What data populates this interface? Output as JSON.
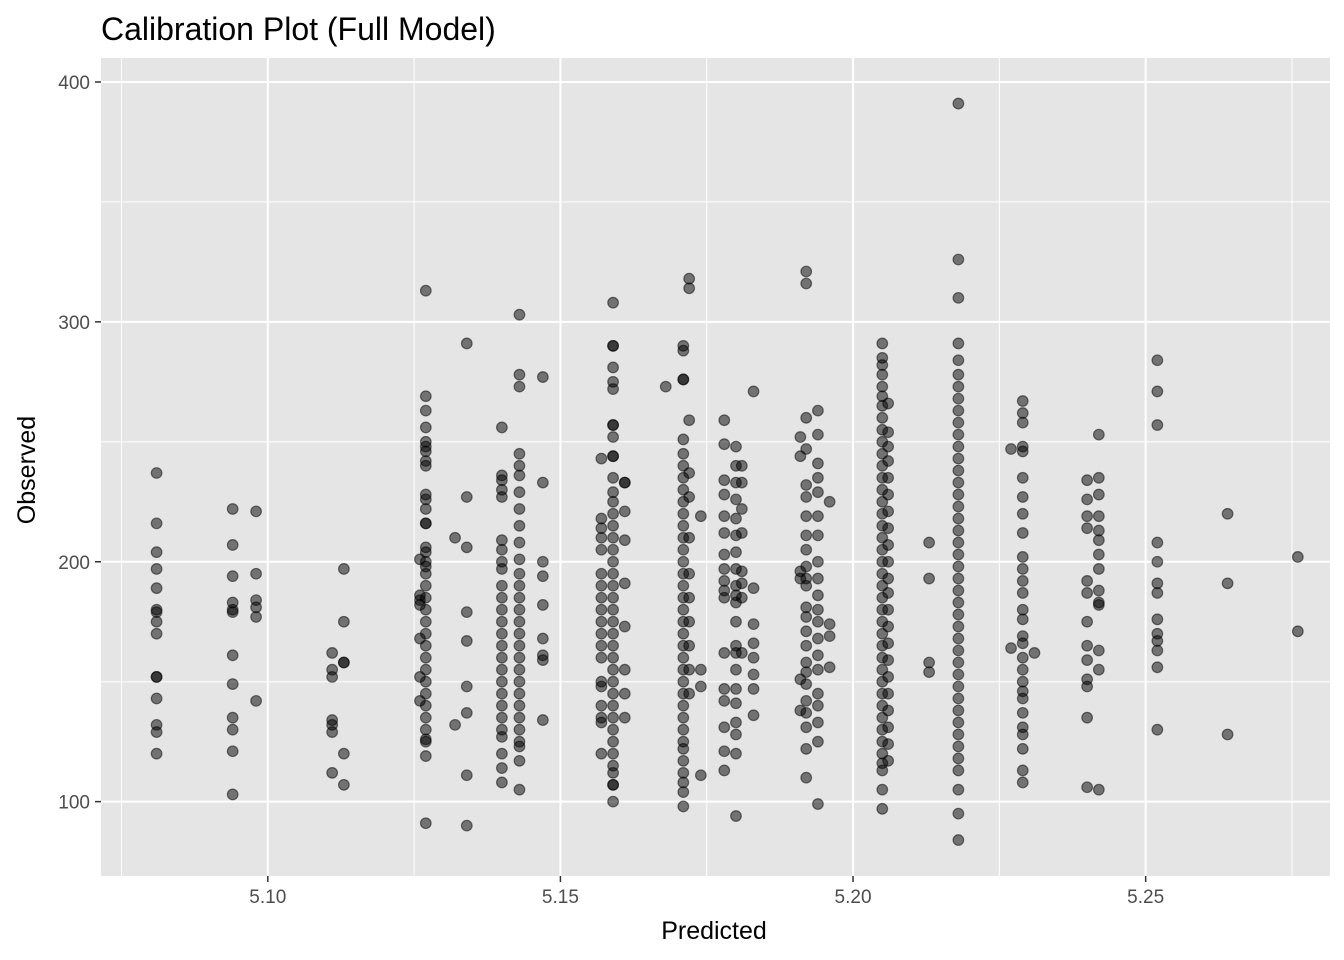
{
  "chart_data": {
    "type": "scatter",
    "title": "Calibration Plot (Full Model)",
    "xlabel": "Predicted",
    "ylabel": "Observed",
    "xlim": [
      5.0715,
      5.2815
    ],
    "ylim": [
      69,
      410
    ],
    "x_ticks": [
      5.1,
      5.15,
      5.2,
      5.25
    ],
    "x_tick_labels": [
      "5.10",
      "5.15",
      "5.20",
      "5.25"
    ],
    "y_ticks": [
      100,
      200,
      300,
      400
    ],
    "y_tick_labels": [
      "100",
      "200",
      "300",
      "400"
    ],
    "grid": true,
    "legend": "none",
    "point_color": "#000000",
    "point_opacity": 0.5,
    "panel_background": "#e5e5e5",
    "grid_color": "#ffffff",
    "columns": [
      {
        "x": 5.081,
        "y": [
          237,
          216,
          204,
          197,
          189,
          180,
          179,
          175,
          170,
          152,
          152,
          143,
          132,
          129,
          120
        ]
      },
      {
        "x": 5.094,
        "y": [
          222,
          207,
          194,
          183,
          180,
          179,
          161,
          149,
          135,
          130,
          121,
          103
        ]
      },
      {
        "x": 5.098,
        "y": [
          221,
          195,
          184,
          181,
          177,
          142
        ]
      },
      {
        "x": 5.111,
        "y": [
          162,
          155,
          152,
          134,
          132,
          129,
          112
        ]
      },
      {
        "x": 5.113,
        "y": [
          197,
          175,
          158,
          158,
          120,
          107
        ]
      },
      {
        "x": 5.126,
        "y": [
          201,
          186,
          184,
          182,
          168,
          152,
          142
        ]
      },
      {
        "x": 5.127,
        "y": [
          313,
          269,
          263,
          256,
          250,
          248,
          246,
          242,
          240,
          228,
          226,
          222,
          216,
          216,
          206,
          204,
          200,
          198,
          195,
          190,
          185,
          180,
          175,
          170,
          165,
          160,
          155,
          150,
          145,
          140,
          135,
          130,
          126,
          125,
          119,
          91
        ]
      },
      {
        "x": 5.132,
        "y": [
          210,
          132
        ]
      },
      {
        "x": 5.134,
        "y": [
          291,
          227,
          206,
          179,
          167,
          148,
          137,
          111,
          90
        ]
      },
      {
        "x": 5.14,
        "y": [
          256,
          236,
          234,
          230,
          227,
          209,
          205,
          200,
          197,
          190,
          185,
          180,
          175,
          170,
          165,
          160,
          155,
          150,
          145,
          140,
          135,
          130,
          127,
          120,
          114,
          108
        ]
      },
      {
        "x": 5.143,
        "y": [
          303,
          278,
          273,
          245,
          240,
          236,
          229,
          222,
          215,
          208,
          201,
          195,
          190,
          185,
          180,
          175,
          170,
          165,
          160,
          155,
          150,
          145,
          140,
          135,
          130,
          125,
          123,
          117,
          105
        ]
      },
      {
        "x": 5.147,
        "y": [
          277,
          233,
          200,
          194,
          182,
          168,
          161,
          159,
          134
        ]
      },
      {
        "x": 5.157,
        "y": [
          243,
          218,
          214,
          210,
          205,
          195,
          190,
          185,
          180,
          175,
          170,
          165,
          160,
          150,
          148,
          140,
          135,
          133,
          120
        ]
      },
      {
        "x": 5.159,
        "y": [
          308,
          290,
          290,
          281,
          275,
          272,
          257,
          257,
          252,
          244,
          244,
          235,
          229,
          225,
          220,
          215,
          210,
          205,
          200,
          195,
          190,
          185,
          180,
          175,
          170,
          165,
          160,
          155,
          150,
          145,
          140,
          135,
          130,
          125,
          120,
          115,
          112,
          107,
          107,
          100
        ]
      },
      {
        "x": 5.161,
        "y": [
          233,
          233,
          221,
          209,
          191,
          173,
          155,
          145,
          135
        ]
      },
      {
        "x": 5.168,
        "y": [
          273
        ]
      },
      {
        "x": 5.171,
        "y": [
          290,
          288,
          276,
          276,
          251,
          245,
          240,
          235,
          230,
          225,
          220,
          215,
          210,
          205,
          200,
          195,
          190,
          185,
          180,
          175,
          170,
          165,
          160,
          155,
          150,
          145,
          140,
          135,
          130,
          125,
          122,
          117,
          112,
          108,
          104,
          98
        ]
      },
      {
        "x": 5.172,
        "y": [
          318,
          314,
          259,
          237,
          227,
          210,
          195,
          185,
          175,
          165,
          155,
          145
        ]
      },
      {
        "x": 5.174,
        "y": [
          219,
          155,
          148,
          111
        ]
      },
      {
        "x": 5.178,
        "y": [
          259,
          249,
          234,
          228,
          219,
          212,
          203,
          197,
          192,
          188,
          185,
          162,
          147,
          142,
          131,
          121,
          113
        ]
      },
      {
        "x": 5.18,
        "y": [
          248,
          240,
          233,
          226,
          218,
          211,
          204,
          197,
          190,
          186,
          183,
          175,
          165,
          162,
          155,
          147,
          141,
          133,
          128,
          120,
          94
        ]
      },
      {
        "x": 5.181,
        "y": [
          240,
          233,
          222,
          212,
          196,
          191,
          185,
          162
        ]
      },
      {
        "x": 5.183,
        "y": [
          271,
          189,
          174,
          166,
          160,
          153,
          147,
          136
        ]
      },
      {
        "x": 5.191,
        "y": [
          252,
          244,
          196,
          193,
          151,
          138
        ]
      },
      {
        "x": 5.192,
        "y": [
          321,
          316,
          260,
          247,
          232,
          227,
          219,
          211,
          205,
          198,
          193,
          190,
          181,
          177,
          171,
          165,
          158,
          154,
          149,
          142,
          137,
          131,
          122,
          110
        ]
      },
      {
        "x": 5.194,
        "y": [
          263,
          253,
          241,
          235,
          229,
          219,
          211,
          200,
          193,
          186,
          180,
          175,
          168,
          161,
          155,
          145,
          140,
          133,
          125,
          99
        ]
      },
      {
        "x": 5.196,
        "y": [
          225,
          174,
          169,
          156
        ]
      },
      {
        "x": 5.205,
        "y": [
          291,
          285,
          282,
          278,
          273,
          269,
          265,
          260,
          255,
          250,
          245,
          240,
          235,
          230,
          225,
          220,
          215,
          210,
          205,
          200,
          195,
          190,
          185,
          180,
          175,
          170,
          165,
          160,
          155,
          150,
          145,
          140,
          135,
          130,
          125,
          120,
          116,
          113,
          105,
          97
        ]
      },
      {
        "x": 5.206,
        "y": [
          266,
          254,
          248,
          242,
          235,
          228,
          221,
          214,
          207,
          200,
          193,
          187,
          180,
          173,
          166,
          159,
          152,
          145,
          138,
          131,
          124,
          117
        ]
      },
      {
        "x": 5.213,
        "y": [
          208,
          193,
          158,
          154
        ]
      },
      {
        "x": 5.218,
        "y": [
          391,
          326,
          310,
          291,
          284,
          278,
          273,
          268,
          263,
          258,
          253,
          248,
          243,
          238,
          233,
          228,
          223,
          218,
          213,
          208,
          203,
          198,
          193,
          188,
          183,
          178,
          173,
          168,
          163,
          158,
          153,
          148,
          143,
          138,
          133,
          128,
          123,
          118,
          113,
          105,
          95,
          84
        ]
      },
      {
        "x": 5.227,
        "y": [
          247,
          164
        ]
      },
      {
        "x": 5.229,
        "y": [
          267,
          262,
          258,
          248,
          246,
          235,
          227,
          220,
          212,
          202,
          197,
          192,
          187,
          180,
          176,
          169,
          166,
          160,
          155,
          150,
          146,
          143,
          137,
          131,
          128,
          122,
          113,
          108
        ]
      },
      {
        "x": 5.231,
        "y": [
          162
        ]
      },
      {
        "x": 5.24,
        "y": [
          234,
          226,
          219,
          214,
          192,
          187,
          175,
          165,
          159,
          151,
          148,
          135,
          106
        ]
      },
      {
        "x": 5.242,
        "y": [
          253,
          235,
          228,
          219,
          213,
          209,
          203,
          197,
          188,
          183,
          182,
          163,
          155,
          105
        ]
      },
      {
        "x": 5.252,
        "y": [
          284,
          271,
          257,
          208,
          200,
          191,
          187,
          176,
          170,
          167,
          163,
          156,
          130
        ]
      },
      {
        "x": 5.264,
        "y": [
          220,
          191,
          128
        ]
      },
      {
        "x": 5.276,
        "y": [
          202,
          171
        ]
      }
    ]
  }
}
